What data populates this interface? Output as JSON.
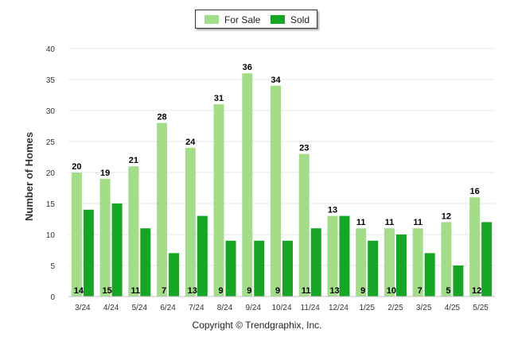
{
  "chart_data": {
    "type": "bar",
    "ylabel": "Number of Homes",
    "xlabel": "",
    "title": "",
    "ylim": [
      0,
      40
    ],
    "y_ticks": [
      0,
      5,
      10,
      15,
      20,
      25,
      30,
      35,
      40
    ],
    "grid": true,
    "legend_position": "top-center",
    "categories": [
      "3/24",
      "4/24",
      "5/24",
      "6/24",
      "7/24",
      "8/24",
      "9/24",
      "10/24",
      "11/24",
      "12/24",
      "1/25",
      "2/25",
      "3/25",
      "4/25",
      "5/25"
    ],
    "series": [
      {
        "name": "For Sale",
        "color": "#a3dd8a",
        "values": [
          20,
          19,
          21,
          28,
          24,
          31,
          36,
          34,
          23,
          13,
          11,
          11,
          11,
          12,
          16
        ]
      },
      {
        "name": "Sold",
        "color": "#17a526",
        "values": [
          14,
          15,
          11,
          7,
          13,
          9,
          9,
          9,
          11,
          13,
          9,
          10,
          7,
          5,
          12
        ]
      }
    ]
  },
  "footer": {
    "copyright": "Copyright © Trendgraphix, Inc."
  }
}
